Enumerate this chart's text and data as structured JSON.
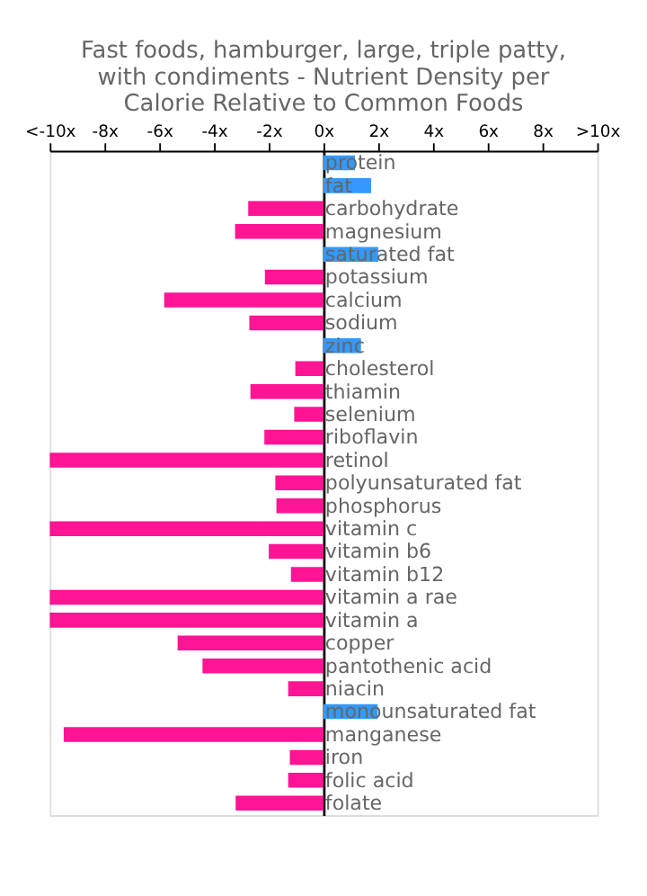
{
  "chart_data": {
    "type": "bar",
    "orientation": "horizontal",
    "title": "Fast foods, hamburger, large, triple patty, with condiments - Nutrient Density per Calorie Relative to Common Foods",
    "categories": [
      "protein",
      "fat",
      "carbohydrate",
      "magnesium",
      "saturated fat",
      "potassium",
      "calcium",
      "sodium",
      "zinc",
      "cholesterol",
      "thiamin",
      "selenium",
      "riboflavin",
      "retinol",
      "polyunsaturated fat",
      "phosphorus",
      "vitamin c",
      "vitamin b6",
      "vitamin b12",
      "vitamin a rae",
      "vitamin a",
      "copper",
      "pantothenic acid",
      "niacin",
      "monounsaturated fat",
      "manganese",
      "iron",
      "folic acid",
      "folate"
    ],
    "values": [
      1.15,
      1.74,
      -2.75,
      -3.23,
      2.0,
      -2.14,
      -5.82,
      -2.71,
      1.37,
      -1.03,
      -2.67,
      -1.07,
      -2.16,
      -10,
      -1.76,
      -1.72,
      -10,
      -2.0,
      -1.19,
      -10,
      -10,
      -5.33,
      -4.42,
      -1.29,
      1.98,
      -9.49,
      -1.23,
      -1.29,
      -3.21
    ],
    "colors": [
      "#3399ff",
      "#3399ff",
      "#ff1493",
      "#ff1493",
      "#3399ff",
      "#ff1493",
      "#ff1493",
      "#ff1493",
      "#3399ff",
      "#ff1493",
      "#ff1493",
      "#ff1493",
      "#ff1493",
      "#ff1493",
      "#ff1493",
      "#ff1493",
      "#ff1493",
      "#ff1493",
      "#ff1493",
      "#ff1493",
      "#ff1493",
      "#ff1493",
      "#ff1493",
      "#ff1493",
      "#3399ff",
      "#ff1493",
      "#ff1493",
      "#ff1493",
      "#ff1493"
    ],
    "xlim": [
      -10,
      10
    ],
    "xticks": [
      {
        "value": -10,
        "label": "<-10x"
      },
      {
        "value": -8,
        "label": "-8x"
      },
      {
        "value": -6,
        "label": "-6x"
      },
      {
        "value": -4,
        "label": "-4x"
      },
      {
        "value": -2,
        "label": "-2x"
      },
      {
        "value": 0,
        "label": "0x"
      },
      {
        "value": 2,
        "label": "2x"
      },
      {
        "value": 4,
        "label": "4x"
      },
      {
        "value": 6,
        "label": "6x"
      },
      {
        "value": 8,
        "label": "8x"
      },
      {
        "value": 10,
        "label": ">10x"
      }
    ],
    "grid": false
  }
}
